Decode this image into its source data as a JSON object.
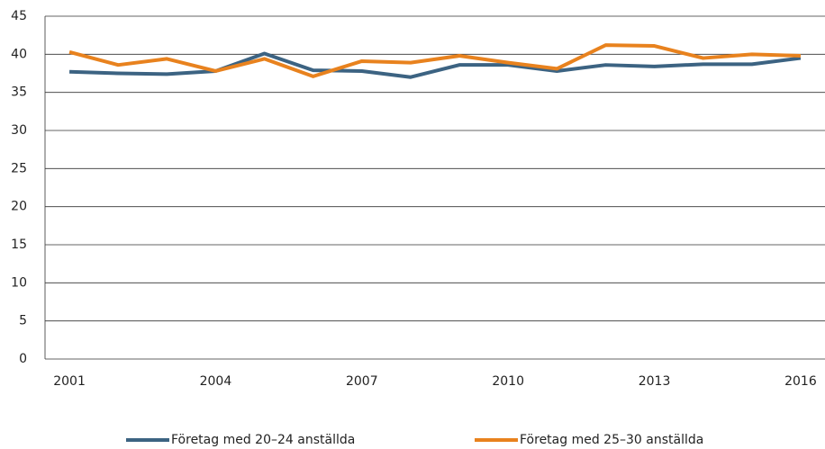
{
  "chart_data": {
    "type": "line",
    "x": [
      2001,
      2002,
      2003,
      2004,
      2005,
      2006,
      2007,
      2008,
      2009,
      2010,
      2011,
      2012,
      2013,
      2014,
      2015,
      2016
    ],
    "series": [
      {
        "name": "Företag med 20–24 anställda",
        "color": "#3c6382",
        "values": [
          37.7,
          37.5,
          37.4,
          37.8,
          40.1,
          37.9,
          37.8,
          37.0,
          38.6,
          38.6,
          37.8,
          38.6,
          38.4,
          38.7,
          38.7,
          39.5
        ]
      },
      {
        "name": "Företag med 25–30 anställda",
        "color": "#e8821e",
        "values": [
          40.3,
          38.6,
          39.4,
          37.8,
          39.4,
          37.1,
          39.1,
          38.9,
          39.8,
          38.9,
          38.1,
          41.2,
          41.1,
          39.5,
          40.0,
          39.8
        ]
      }
    ],
    "xlim": [
      2000.5,
      2016.5
    ],
    "xticks": [
      2001,
      2004,
      2007,
      2010,
      2013,
      2016
    ],
    "ylim": [
      0,
      45
    ],
    "yticks": [
      0,
      5,
      10,
      15,
      20,
      25,
      30,
      35,
      40,
      45
    ],
    "grid": true,
    "legend": "bottom"
  }
}
